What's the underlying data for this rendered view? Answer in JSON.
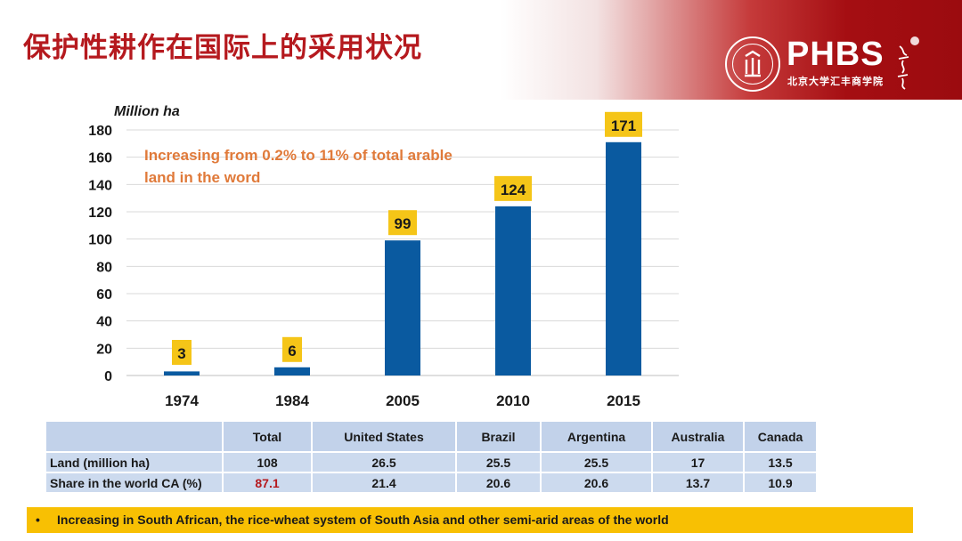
{
  "slide_title": "保护性耕作在国际上的采用状况",
  "logo": {
    "name": "PHBS",
    "chinese_name": "北京大学汇丰商学院",
    "seal_icon": "peking-university-seal-icon",
    "calligraphy_icon": "calligraphy-mark-icon"
  },
  "colors": {
    "title": "#b5191e",
    "bar": "#0a5aa0",
    "data_label_bg": "#f5c518",
    "annotation": "#e07a3a",
    "table_cell": "#c7d6ec",
    "note_bg": "#f8c003"
  },
  "chart_data": {
    "type": "bar",
    "title": "",
    "xlabel": "",
    "ylabel": "Million ha",
    "categories": [
      "1974",
      "1984",
      "2005",
      "2010",
      "2015"
    ],
    "values": [
      3,
      6,
      99,
      124,
      171
    ],
    "data_labels": [
      "3",
      "6",
      "99",
      "124",
      "171"
    ],
    "ylim": [
      0,
      180
    ],
    "yticks": [
      0,
      20,
      40,
      60,
      80,
      100,
      120,
      140,
      160,
      180
    ],
    "grid": true,
    "legend": "none",
    "annotation": [
      "Increasing from 0.2% to 11% of total arable",
      "land in the word"
    ]
  },
  "table": {
    "headers": [
      "",
      "Total",
      "United States",
      "Brazil",
      "Argentina",
      "Australia",
      "Canada"
    ],
    "rows": [
      [
        "Land (million ha)",
        "108",
        "26.5",
        "25.5",
        "25.5",
        "17",
        "13.5"
      ],
      [
        "Share in the world CA (%)",
        "87.1",
        "21.4",
        "20.6",
        "20.6",
        "13.7",
        "10.9"
      ]
    ]
  },
  "note": {
    "bullet": "•",
    "text": "Increasing in South African, the rice-wheat system of South Asia and other semi-arid areas of the world"
  }
}
